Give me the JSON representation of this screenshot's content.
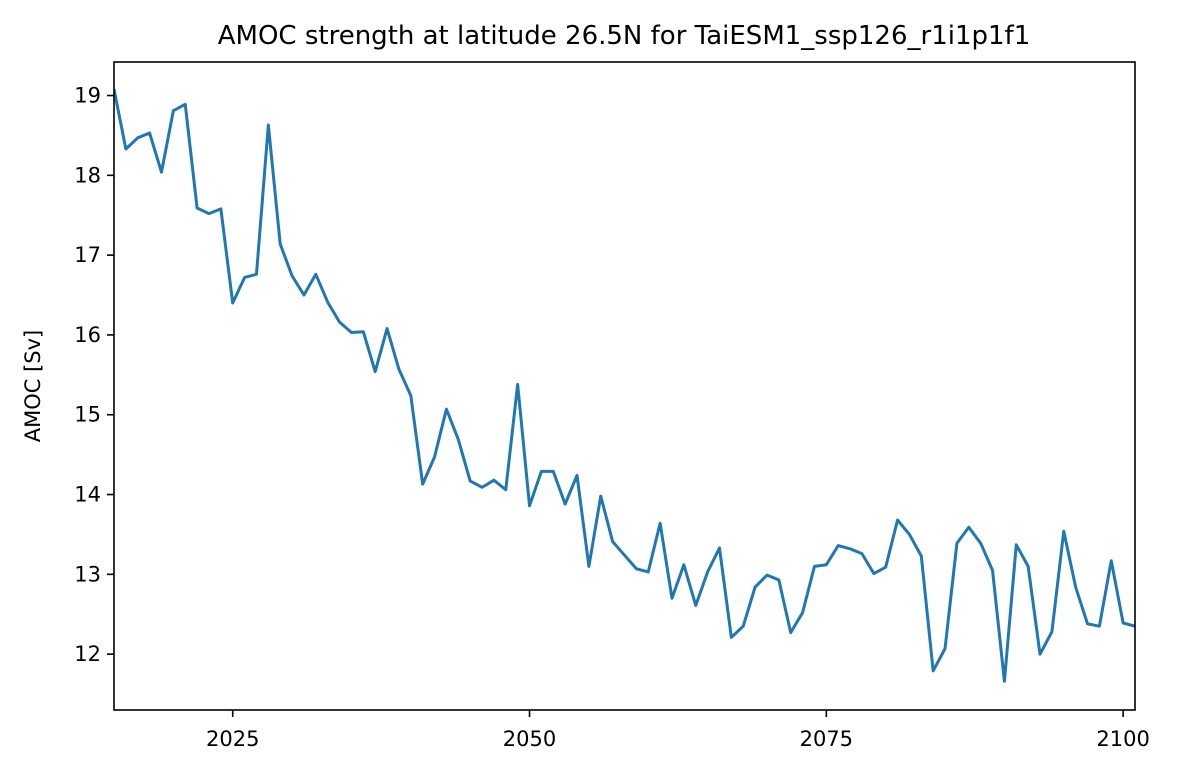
{
  "chart_data": {
    "type": "line",
    "title": "AMOC strength at latitude 26.5N for TaiESM1_ssp126_r1i1p1f1",
    "xlabel": "",
    "ylabel": "AMOC [Sv]",
    "xlim": [
      2015,
      2101
    ],
    "ylim": [
      11.3,
      19.42
    ],
    "xticks": [
      2025,
      2050,
      2075,
      2100
    ],
    "yticks": [
      12,
      13,
      14,
      15,
      16,
      17,
      18,
      19
    ],
    "grid": false,
    "series": [
      {
        "color": "#1f77b4",
        "x": [
          2015,
          2016,
          2017,
          2018,
          2019,
          2020,
          2021,
          2022,
          2023,
          2024,
          2025,
          2026,
          2027,
          2028,
          2029,
          2030,
          2031,
          2032,
          2033,
          2034,
          2035,
          2036,
          2037,
          2038,
          2039,
          2040,
          2041,
          2042,
          2043,
          2044,
          2045,
          2046,
          2047,
          2048,
          2049,
          2050,
          2051,
          2052,
          2053,
          2054,
          2055,
          2056,
          2057,
          2058,
          2059,
          2060,
          2061,
          2062,
          2063,
          2064,
          2065,
          2066,
          2067,
          2068,
          2069,
          2070,
          2071,
          2072,
          2073,
          2074,
          2075,
          2076,
          2077,
          2078,
          2079,
          2080,
          2081,
          2082,
          2083,
          2084,
          2085,
          2086,
          2087,
          2088,
          2089,
          2090,
          2091,
          2092,
          2093,
          2094,
          2095,
          2096,
          2097,
          2098,
          2099,
          2100,
          2101
        ],
        "values": [
          19.08,
          18.33,
          18.47,
          18.53,
          18.04,
          18.81,
          18.89,
          17.59,
          17.52,
          17.58,
          16.4,
          16.72,
          16.76,
          18.63,
          17.14,
          16.74,
          16.5,
          16.76,
          16.41,
          16.16,
          16.03,
          16.04,
          15.54,
          16.08,
          15.57,
          15.24,
          14.13,
          14.47,
          15.07,
          14.69,
          14.17,
          14.09,
          14.18,
          14.06,
          15.38,
          13.86,
          14.29,
          14.29,
          13.88,
          14.24,
          13.1,
          13.98,
          13.41,
          13.24,
          13.07,
          13.03,
          13.64,
          12.7,
          13.12,
          12.61,
          13.03,
          13.33,
          12.21,
          12.35,
          12.84,
          12.99,
          12.93,
          12.27,
          12.52,
          13.1,
          13.12,
          13.36,
          13.32,
          13.26,
          13.01,
          13.09,
          13.68,
          13.5,
          13.23,
          11.79,
          12.07,
          13.39,
          13.59,
          13.39,
          13.05,
          11.66,
          13.37,
          13.1,
          12.0,
          12.28,
          13.54,
          12.84,
          12.38,
          12.35,
          13.17,
          12.39,
          12.35
        ]
      }
    ]
  }
}
